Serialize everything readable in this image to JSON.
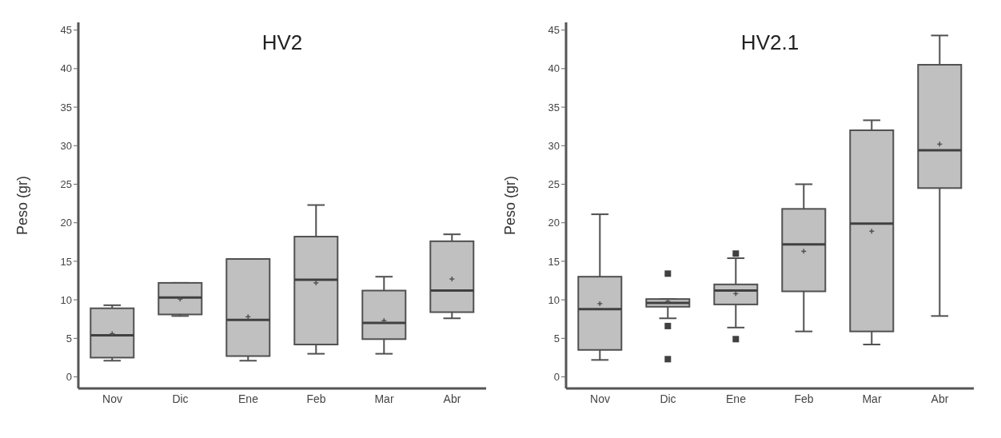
{
  "chart_data": [
    {
      "type": "box",
      "title": "HV2",
      "ylabel": "Peso (gr)",
      "categories": [
        "Nov",
        "Dic",
        "Ene",
        "Feb",
        "Mar",
        "Abr"
      ],
      "color": "#c0c0c0",
      "ylim": [
        -1.5,
        46
      ],
      "yticks": [
        0,
        5,
        10,
        15,
        20,
        25,
        30,
        35,
        40,
        45
      ],
      "boxes": [
        {
          "low": 2.1,
          "q1": 2.5,
          "median": 5.4,
          "q3": 8.9,
          "high": 9.3,
          "mean": 5.6
        },
        {
          "low": 7.9,
          "q1": 8.1,
          "median": 10.3,
          "q3": 12.2,
          "high": 12.2,
          "mean": 10.1
        },
        {
          "low": 2.1,
          "q1": 2.7,
          "median": 7.4,
          "q3": 15.3,
          "high": 15.3,
          "mean": 7.8
        },
        {
          "low": 3.0,
          "q1": 4.2,
          "median": 12.6,
          "q3": 18.2,
          "high": 22.3,
          "mean": 12.2
        },
        {
          "low": 3.0,
          "q1": 4.9,
          "median": 7.0,
          "q3": 11.2,
          "high": 13.0,
          "mean": 7.3
        },
        {
          "low": 7.6,
          "q1": 8.4,
          "median": 11.2,
          "q3": 17.6,
          "high": 18.5,
          "mean": 12.7
        }
      ]
    },
    {
      "type": "box",
      "title": "HV2.1",
      "ylabel": "Peso (gr)",
      "categories": [
        "Nov",
        "Dic",
        "Ene",
        "Feb",
        "Mar",
        "Abr"
      ],
      "color": "#c0c0c0",
      "ylim": [
        -1.5,
        46
      ],
      "yticks": [
        0,
        5,
        10,
        15,
        20,
        25,
        30,
        35,
        40,
        45
      ],
      "boxes": [
        {
          "low": 2.2,
          "q1": 3.5,
          "median": 8.8,
          "q3": 13.0,
          "high": 21.1,
          "mean": 9.5
        },
        {
          "low": 7.6,
          "q1": 9.1,
          "median": 9.6,
          "q3": 10.1,
          "high": 10.1,
          "mean": 9.8,
          "outliers": [
            13.4,
            6.6,
            2.3
          ]
        },
        {
          "low": 6.4,
          "q1": 9.4,
          "median": 11.2,
          "q3": 12.0,
          "high": 15.4,
          "mean": 10.8,
          "outliers": [
            16.0,
            4.9
          ]
        },
        {
          "low": 5.9,
          "q1": 11.1,
          "median": 17.2,
          "q3": 21.8,
          "high": 25.0,
          "mean": 16.3
        },
        {
          "low": 4.2,
          "q1": 5.9,
          "median": 19.9,
          "q3": 32.0,
          "high": 33.3,
          "mean": 18.9
        },
        {
          "low": 7.9,
          "q1": 24.5,
          "median": 29.4,
          "q3": 40.5,
          "high": 44.3,
          "mean": 30.2
        }
      ]
    }
  ]
}
